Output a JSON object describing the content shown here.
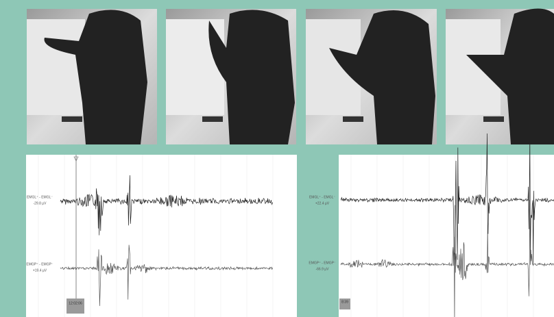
{
  "left_panel": {
    "channels": [
      {
        "label": "EMGL⁺ - EMGL⁻",
        "amplitude": "-29.8 µV"
      },
      {
        "label": "EMGP⁺ - EMGP⁻",
        "amplitude": "+19.4 µV"
      }
    ],
    "timestamp": "12:02:06"
  },
  "right_panel": {
    "channels": [
      {
        "label": "EMGL⁺ - EMGL⁻",
        "amplitude": "+22.4 µV"
      },
      {
        "label": "EMGP⁺ - EMGP⁻",
        "amplitude": "-66.9 µV"
      }
    ],
    "timestamp": "8:39"
  }
}
